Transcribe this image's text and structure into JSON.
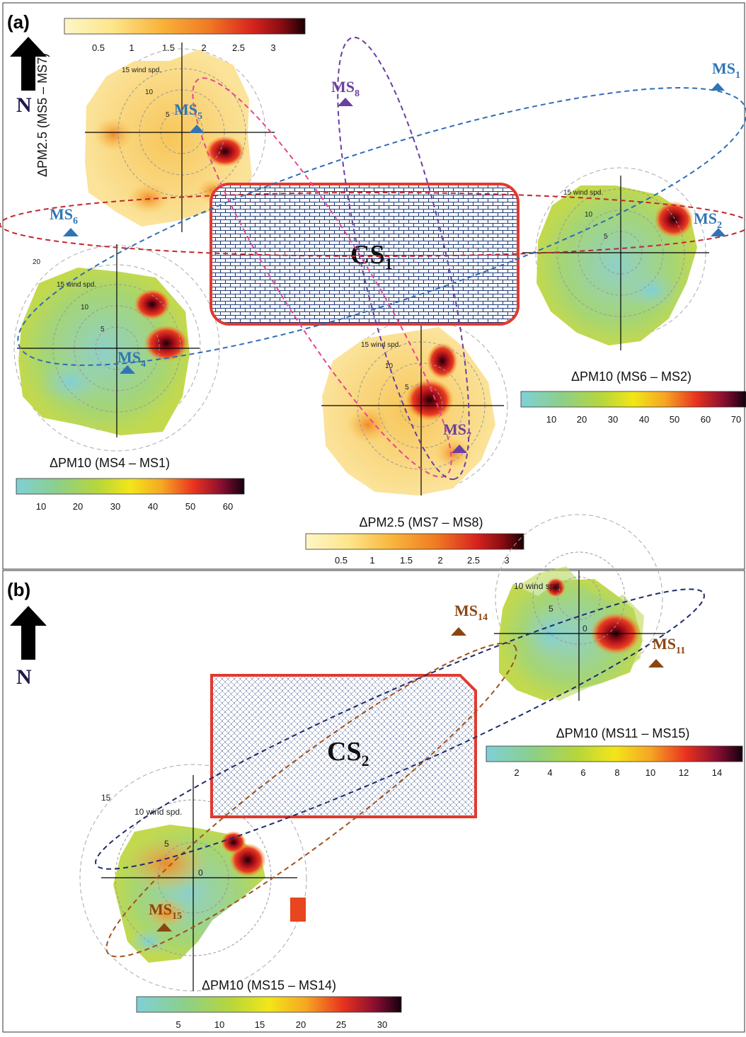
{
  "panels": [
    {
      "id": "a",
      "label": "(a)",
      "north": "N",
      "site": "CS1",
      "stations": [
        {
          "id": "ms1",
          "name": "MS1",
          "color": "#2f75b5"
        },
        {
          "id": "ms2",
          "name": "MS2",
          "color": "#2f75b5"
        },
        {
          "id": "ms4",
          "name": "MS4",
          "color": "#2f75b5"
        },
        {
          "id": "ms5",
          "name": "MS5",
          "color": "#2f75b5"
        },
        {
          "id": "ms6",
          "name": "MS6",
          "color": "#2f75b5"
        },
        {
          "id": "ms7",
          "name": "MS7",
          "color": "#6b3fa0"
        },
        {
          "id": "ms8",
          "name": "MS8",
          "color": "#6b3fa0"
        }
      ],
      "polar_plots": [
        {
          "id": "p1",
          "title": "ΔPM2.5 (MS5 – MS7)",
          "rings": [
            "5",
            "10",
            "15 wind spd."
          ],
          "scale": [
            0.5,
            1,
            1.5,
            2,
            2.5,
            3
          ],
          "palette": "pm25"
        },
        {
          "id": "p2",
          "title": "ΔPM10 (MS6 – MS2)",
          "rings": [
            "5",
            "10",
            "15 wind spd."
          ],
          "scale": [
            10,
            20,
            30,
            40,
            50,
            60,
            70
          ],
          "palette": "pm10"
        },
        {
          "id": "p3",
          "title": "ΔPM10 (MS4 – MS1)",
          "rings": [
            "5",
            "10",
            "15 wind spd.",
            "20"
          ],
          "scale": [
            10,
            20,
            30,
            40,
            50,
            60
          ],
          "palette": "pm10"
        },
        {
          "id": "p4",
          "title": "ΔPM2.5 (MS7 – MS8)",
          "rings": [
            "5",
            "10",
            "15 wind spd."
          ],
          "scale": [
            0.5,
            1,
            1.5,
            2,
            2.5,
            3
          ],
          "palette": "pm25"
        }
      ]
    },
    {
      "id": "b",
      "label": "(b)",
      "north": "N",
      "site": "CS2",
      "stations": [
        {
          "id": "ms11",
          "name": "MS11",
          "color": "#8b4513"
        },
        {
          "id": "ms14",
          "name": "MS14",
          "color": "#8b4513"
        },
        {
          "id": "ms15",
          "name": "MS15",
          "color": "#8b4513"
        }
      ],
      "polar_plots": [
        {
          "id": "p5",
          "title": "ΔPM10 (MS11 – MS15)",
          "rings": [
            "0",
            "5",
            "10 wind spd."
          ],
          "scale": [
            2,
            4,
            6,
            8,
            10,
            12,
            14
          ],
          "palette": "pm10"
        },
        {
          "id": "p6",
          "title": "ΔPM10 (MS15 – MS14)",
          "rings": [
            "0",
            "5",
            "10 wind spd.",
            "15"
          ],
          "scale": [
            5,
            10,
            15,
            20,
            25,
            30
          ],
          "palette": "pm10"
        }
      ]
    }
  ],
  "colors": {
    "site_border": "#e03a2f",
    "site_hatch": "#1f3a7a",
    "ellipse_blue": "#2f6db5",
    "ellipse_red": "#c0282d",
    "ellipse_pink": "#e8458f",
    "ellipse_purple": "#6b3fa0",
    "ellipse_brown": "#a0521d",
    "ellipse_navy": "#1f2d6b"
  }
}
